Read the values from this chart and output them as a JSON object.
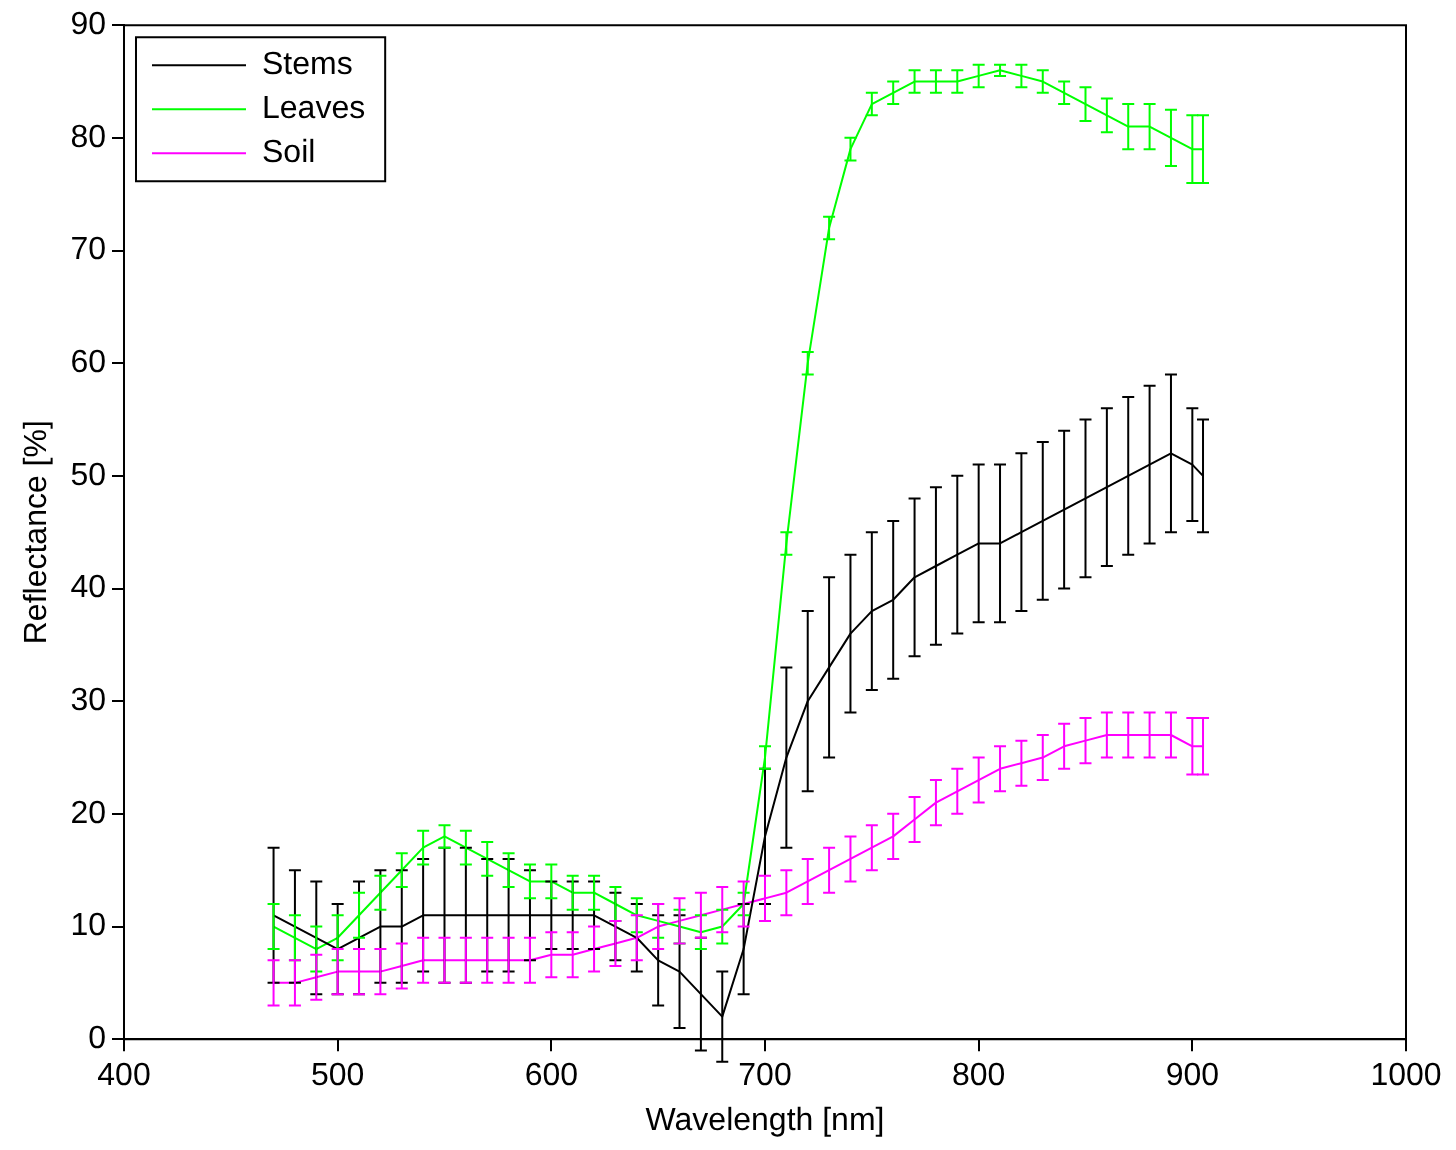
{
  "chart_data": {
    "type": "line",
    "xlabel": "Wavelength [nm]",
    "ylabel": "Reflectance [%]",
    "x": [
      470,
      480,
      490,
      500,
      510,
      520,
      530,
      540,
      550,
      560,
      570,
      580,
      590,
      600,
      610,
      620,
      630,
      640,
      650,
      660,
      670,
      680,
      690,
      700,
      710,
      720,
      730,
      740,
      750,
      760,
      770,
      780,
      790,
      800,
      810,
      820,
      830,
      840,
      850,
      860,
      870,
      880,
      890,
      900,
      905
    ],
    "xlim": [
      400,
      1000
    ],
    "xticks": [
      400,
      500,
      600,
      700,
      800,
      900,
      1000
    ],
    "ylim": [
      0,
      90
    ],
    "yticks": [
      0,
      10,
      20,
      30,
      40,
      50,
      60,
      70,
      80,
      90
    ],
    "grid": false,
    "legend": "top left",
    "marker": "none",
    "line_style": "solid",
    "series": [
      {
        "name": "Stems",
        "color": "#000000",
        "values": [
          11,
          10,
          9,
          8,
          9,
          10,
          10,
          11,
          11,
          11,
          11,
          11,
          11,
          11,
          11,
          11,
          10,
          9,
          7,
          6,
          4,
          2,
          8,
          18,
          25,
          30,
          33,
          36,
          38,
          39,
          41,
          42,
          43,
          44,
          44,
          45,
          46,
          47,
          48,
          49,
          50,
          51,
          52,
          51,
          50
        ],
        "errors": [
          6,
          5,
          5,
          4,
          5,
          5,
          5,
          5,
          6,
          6,
          5,
          5,
          4,
          3,
          3,
          3,
          3,
          3,
          4,
          5,
          5,
          4,
          4,
          6,
          8,
          8,
          8,
          7,
          7,
          7,
          7,
          7,
          7,
          7,
          7,
          7,
          7,
          7,
          7,
          7,
          7,
          7,
          7,
          5,
          5
        ]
      },
      {
        "name": "Leaves",
        "color": "#00ff00",
        "values": [
          10,
          9,
          8,
          9,
          11,
          13,
          15,
          17,
          18,
          17,
          16,
          15,
          14,
          14,
          13,
          13,
          12,
          11,
          10.5,
          10,
          9.5,
          10,
          12,
          25,
          44,
          60,
          72,
          79,
          83,
          84,
          85,
          85,
          85,
          85.5,
          86,
          85.5,
          85,
          84,
          83,
          82,
          81,
          81,
          80,
          79,
          79
        ],
        "errors": [
          2,
          2,
          2,
          2,
          2,
          1.5,
          1.5,
          1.5,
          1,
          1.5,
          1.5,
          1.5,
          1.5,
          1.5,
          1.5,
          1.5,
          1.5,
          1.5,
          1.5,
          1.5,
          1.5,
          1.5,
          1,
          1,
          1,
          1,
          1,
          1,
          1,
          1,
          1,
          1,
          1,
          1,
          0.5,
          1,
          1,
          1,
          1.5,
          1.5,
          2,
          2,
          2.5,
          3,
          3
        ]
      },
      {
        "name": "Soil",
        "color": "#ff00ff",
        "values": [
          5,
          5,
          5.5,
          6,
          6,
          6,
          6.5,
          7,
          7,
          7,
          7,
          7,
          7,
          7.5,
          7.5,
          8,
          8.5,
          9,
          10,
          10.5,
          11,
          11.5,
          12,
          12.5,
          13,
          14,
          15,
          16,
          17,
          18,
          19.5,
          21,
          22,
          23,
          24,
          24.5,
          25,
          26,
          26.5,
          27,
          27,
          27,
          27,
          26,
          26
        ],
        "errors": [
          2,
          2,
          2,
          2,
          2,
          2,
          2,
          2,
          2,
          2,
          2,
          2,
          2,
          2,
          2,
          2,
          2,
          2,
          2,
          2,
          2,
          2,
          2,
          2,
          2,
          2,
          2,
          2,
          2,
          2,
          2,
          2,
          2,
          2,
          2,
          2,
          2,
          2,
          2,
          2,
          2,
          2,
          2,
          2.5,
          2.5
        ]
      }
    ]
  }
}
